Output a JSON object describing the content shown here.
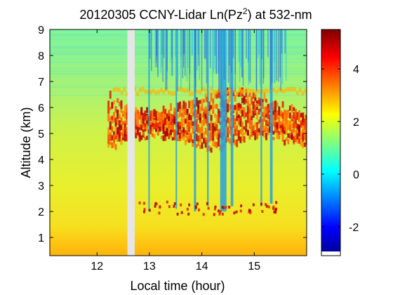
{
  "chart_data": {
    "type": "heatmap",
    "title": {
      "prefix": "20120305 CCNY-Lidar Ln(Pz",
      "superscript": "2",
      "suffix": ") at 532-nm"
    },
    "xlabel": "Local time (hour)",
    "ylabel": "Altitude (km)",
    "xlim": [
      11.1,
      16.0
    ],
    "ylim": [
      0.3,
      9.0
    ],
    "xticks": [
      12,
      13,
      14,
      15
    ],
    "yticks": [
      1,
      2,
      3,
      4,
      5,
      6,
      7,
      8,
      9
    ],
    "colorbar": {
      "colormap": "jet",
      "range": [
        -3.1,
        5.5
      ],
      "ticks": [
        -2,
        0,
        2,
        4
      ]
    },
    "data_gap_hours": [
      12.58,
      12.72
    ],
    "colors": {
      "gap": "#e6e6e6",
      "background": "#ffffff",
      "axes": "#000000"
    }
  }
}
